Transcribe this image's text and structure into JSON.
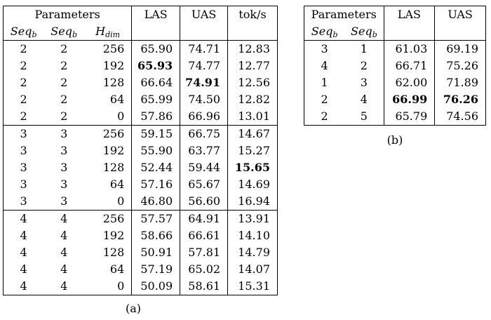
{
  "table_a": {
    "header": {
      "group_label": "Parameters",
      "col_seq1": "Seq",
      "col_seq1_sub": "b",
      "col_seq2": "Seq",
      "col_seq2_sub": "b",
      "col_hdim": "H",
      "col_hdim_sub": "dim",
      "col_las": "LAS",
      "col_uas": "UAS",
      "col_toks": "tok/s"
    },
    "groups": [
      [
        [
          "2",
          "2",
          "256",
          "65.90",
          "74.71",
          "12.83"
        ],
        [
          "2",
          "2",
          "192",
          "65.93",
          "74.77",
          "12.77"
        ],
        [
          "2",
          "2",
          "128",
          "66.64",
          "74.91",
          "12.56"
        ],
        [
          "2",
          "2",
          "64",
          "65.99",
          "74.50",
          "12.82"
        ],
        [
          "2",
          "2",
          "0",
          "57.86",
          "66.96",
          "13.01"
        ]
      ],
      [
        [
          "3",
          "3",
          "256",
          "59.15",
          "66.75",
          "14.67"
        ],
        [
          "3",
          "3",
          "192",
          "55.90",
          "63.77",
          "15.27"
        ],
        [
          "3",
          "3",
          "128",
          "52.44",
          "59.44",
          "15.65"
        ],
        [
          "3",
          "3",
          "64",
          "57.16",
          "65.67",
          "14.69"
        ],
        [
          "3",
          "3",
          "0",
          "46.80",
          "56.60",
          "16.94"
        ]
      ],
      [
        [
          "4",
          "4",
          "256",
          "57.57",
          "64.91",
          "13.91"
        ],
        [
          "4",
          "4",
          "192",
          "58.66",
          "66.61",
          "14.10"
        ],
        [
          "4",
          "4",
          "128",
          "50.91",
          "57.81",
          "14.79"
        ],
        [
          "4",
          "4",
          "64",
          "57.19",
          "65.02",
          "14.07"
        ],
        [
          "4",
          "4",
          "0",
          "50.09",
          "58.61",
          "15.31"
        ]
      ]
    ],
    "caption": "(a)"
  },
  "table_b": {
    "header": {
      "group_label": "Parameters",
      "col_seq1": "Seq",
      "col_seq1_sub": "b",
      "col_seq2": "Seq",
      "col_seq2_sub": "b",
      "col_las": "LAS",
      "col_uas": "UAS"
    },
    "rows": [
      [
        "3",
        "1",
        "61.03",
        "69.19"
      ],
      [
        "4",
        "2",
        "66.71",
        "75.26"
      ],
      [
        "1",
        "3",
        "62.00",
        "71.89"
      ],
      [
        "2",
        "4",
        "66.99",
        "76.26"
      ],
      [
        "2",
        "5",
        "65.79",
        "74.56"
      ]
    ],
    "caption": "(b)"
  }
}
